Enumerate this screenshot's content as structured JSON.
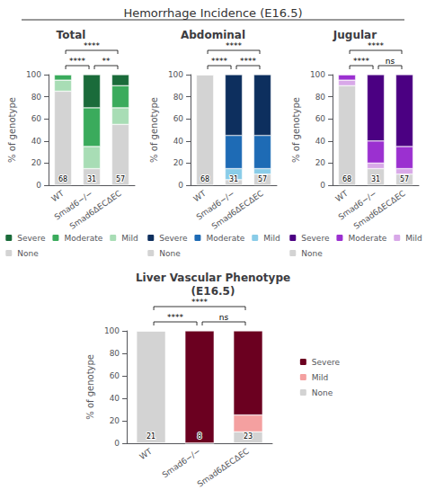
{
  "title": "Hemorrhage Incidence (E16.5)",
  "chart_data": [
    {
      "type": "bar",
      "stacked": true,
      "title": "Total",
      "categories": [
        "WT",
        "Smad6−/−",
        "Smad6ΔECΔEC"
      ],
      "series": [
        {
          "name": "None",
          "color": "#d3d3d3",
          "values": [
            85,
            15,
            55
          ]
        },
        {
          "name": "Mild",
          "color": "#a8ddb5",
          "values": [
            10,
            20,
            15
          ]
        },
        {
          "name": "Moderate",
          "color": "#3aab5c",
          "values": [
            5,
            35,
            20
          ]
        },
        {
          "name": "Severe",
          "color": "#1a6b3a",
          "values": [
            0,
            30,
            10
          ]
        }
      ],
      "ylabel": "% of genotype",
      "ylim": [
        0,
        100
      ],
      "yticks": [
        0,
        20,
        40,
        60,
        80,
        100
      ],
      "grid": false,
      "legend": "bottom",
      "n_labels": [
        "68",
        "31",
        "57"
      ],
      "significance": [
        {
          "between": [
            "WT",
            "Smad6ΔECΔEC"
          ],
          "text": "****"
        },
        {
          "between": [
            "WT",
            "Smad6−/−"
          ],
          "text": "****"
        },
        {
          "between": [
            "Smad6−/−",
            "Smad6ΔECΔEC"
          ],
          "text": "**"
        }
      ]
    },
    {
      "type": "bar",
      "stacked": true,
      "title": "Abdominal",
      "categories": [
        "WT",
        "Smad6−/−",
        "Smad6ΔECΔEC"
      ],
      "series": [
        {
          "name": "None",
          "color": "#d3d3d3",
          "values": [
            100,
            5,
            10
          ]
        },
        {
          "name": "Mild",
          "color": "#89cce8",
          "values": [
            0,
            10,
            5
          ]
        },
        {
          "name": "Moderate",
          "color": "#1e6bb5",
          "values": [
            0,
            30,
            30
          ]
        },
        {
          "name": "Severe",
          "color": "#0d2f5e",
          "values": [
            0,
            55,
            55
          ]
        }
      ],
      "ylabel": "% of genotype",
      "ylim": [
        0,
        100
      ],
      "yticks": [
        0,
        20,
        40,
        60,
        80,
        100
      ],
      "grid": false,
      "legend": "bottom",
      "n_labels": [
        "68",
        "31",
        "57"
      ],
      "significance": [
        {
          "between": [
            "WT",
            "Smad6ΔECΔEC"
          ],
          "text": "****"
        },
        {
          "between": [
            "WT",
            "Smad6−/−"
          ],
          "text": "****"
        },
        {
          "between": [
            "Smad6−/−",
            "Smad6ΔECΔEC"
          ],
          "text": "****"
        }
      ]
    },
    {
      "type": "bar",
      "stacked": true,
      "title": "Jugular",
      "categories": [
        "WT",
        "Smad6−/−",
        "Smad6ΔECΔEC"
      ],
      "series": [
        {
          "name": "None",
          "color": "#d3d3d3",
          "values": [
            90,
            15,
            10
          ]
        },
        {
          "name": "Mild",
          "color": "#d8a8e8",
          "values": [
            5,
            5,
            5
          ]
        },
        {
          "name": "Moderate",
          "color": "#9b30d0",
          "values": [
            5,
            20,
            20
          ]
        },
        {
          "name": "Severe",
          "color": "#4b0082",
          "values": [
            0,
            60,
            65
          ]
        }
      ],
      "ylabel": "% of genotype",
      "ylim": [
        0,
        100
      ],
      "yticks": [
        0,
        20,
        40,
        60,
        80,
        100
      ],
      "grid": false,
      "legend": "bottom",
      "n_labels": [
        "68",
        "31",
        "57"
      ],
      "significance": [
        {
          "between": [
            "WT",
            "Smad6ΔECΔEC"
          ],
          "text": "****"
        },
        {
          "between": [
            "WT",
            "Smad6−/−"
          ],
          "text": "****"
        },
        {
          "between": [
            "Smad6−/−",
            "Smad6ΔECΔEC"
          ],
          "text": "ns"
        }
      ]
    },
    {
      "type": "bar",
      "stacked": true,
      "title": "Liver Vascular Phenotype\n(E16.5)",
      "categories": [
        "WT",
        "Smad6−/−",
        "Smad6ΔECΔEC"
      ],
      "series": [
        {
          "name": "None",
          "color": "#d3d3d3",
          "values": [
            100,
            0,
            10
          ]
        },
        {
          "name": "Mild",
          "color": "#f4a0a0",
          "values": [
            0,
            0,
            15
          ]
        },
        {
          "name": "Severe",
          "color": "#6b0020",
          "values": [
            0,
            100,
            75
          ]
        }
      ],
      "ylabel": "% of genotype",
      "ylim": [
        0,
        100
      ],
      "yticks": [
        0,
        20,
        40,
        60,
        80,
        100
      ],
      "grid": false,
      "legend": "right",
      "n_labels": [
        "21",
        "8",
        "23"
      ],
      "significance": [
        {
          "between": [
            "WT",
            "Smad6ΔECΔEC"
          ],
          "text": "****"
        },
        {
          "between": [
            "WT",
            "Smad6−/−"
          ],
          "text": "****"
        },
        {
          "between": [
            "Smad6−/−",
            "Smad6ΔECΔEC"
          ],
          "text": "ns"
        }
      ]
    }
  ]
}
